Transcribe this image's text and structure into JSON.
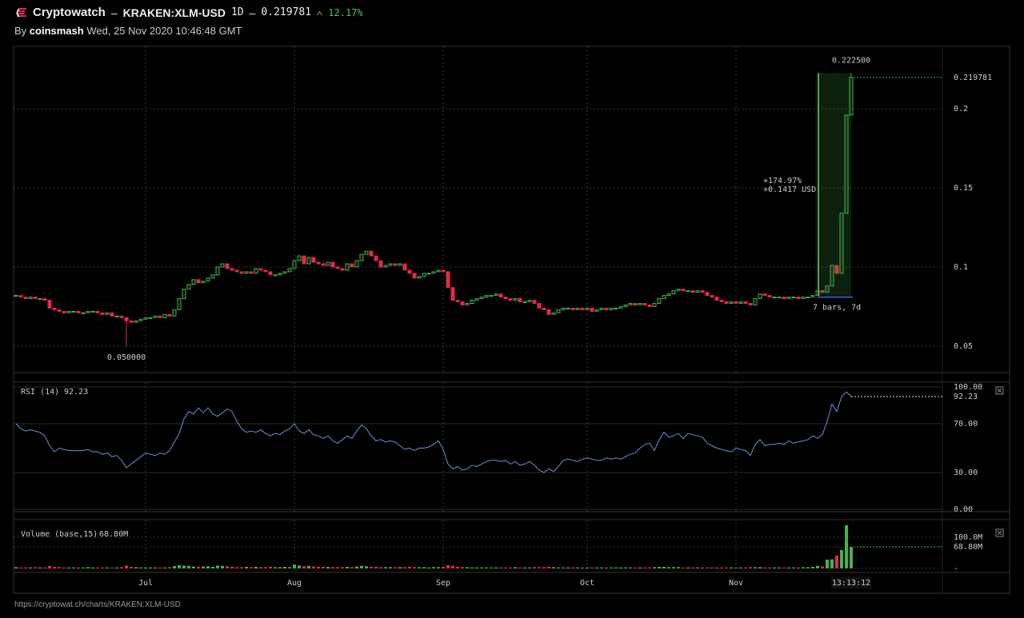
{
  "header": {
    "brand": "Cryptowatch",
    "separator": "–",
    "symbol": "KRAKEN:XLM-USD",
    "interval": "1D",
    "price_change": "12.17%",
    "by": "By",
    "author": "coinsmash",
    "date": "Wed, 25 Nov 2020 10:46:48 GMT"
  },
  "footer": {
    "url": "https://cryptowat.ch/charts/KRAKEN:XLM-USD"
  },
  "chart_data": [
    {
      "type": "candlestick",
      "close": [
        0.082,
        0.081,
        0.08,
        0.081,
        0.08,
        0.08,
        0.079,
        0.074,
        0.073,
        0.072,
        0.071,
        0.072,
        0.072,
        0.071,
        0.071,
        0.072,
        0.072,
        0.071,
        0.07,
        0.071,
        0.069,
        0.069,
        0.068,
        0.066,
        0.065,
        0.066,
        0.067,
        0.068,
        0.068,
        0.069,
        0.068,
        0.07,
        0.069,
        0.073,
        0.08,
        0.086,
        0.089,
        0.092,
        0.09,
        0.091,
        0.093,
        0.095,
        0.1,
        0.102,
        0.099,
        0.098,
        0.097,
        0.096,
        0.097,
        0.096,
        0.099,
        0.098,
        0.097,
        0.095,
        0.095,
        0.096,
        0.097,
        0.099,
        0.104,
        0.107,
        0.102,
        0.106,
        0.103,
        0.102,
        0.101,
        0.103,
        0.1,
        0.099,
        0.098,
        0.102,
        0.1,
        0.104,
        0.108,
        0.11,
        0.107,
        0.104,
        0.1,
        0.101,
        0.102,
        0.101,
        0.102,
        0.098,
        0.096,
        0.093,
        0.094,
        0.096,
        0.096,
        0.097,
        0.098,
        0.097,
        0.087,
        0.079,
        0.078,
        0.076,
        0.077,
        0.079,
        0.08,
        0.081,
        0.082,
        0.082,
        0.083,
        0.081,
        0.08,
        0.079,
        0.08,
        0.078,
        0.078,
        0.079,
        0.077,
        0.074,
        0.073,
        0.07,
        0.071,
        0.073,
        0.074,
        0.074,
        0.073,
        0.074,
        0.073,
        0.074,
        0.072,
        0.073,
        0.074,
        0.073,
        0.074,
        0.074,
        0.075,
        0.076,
        0.077,
        0.076,
        0.077,
        0.076,
        0.075,
        0.077,
        0.08,
        0.082,
        0.083,
        0.085,
        0.086,
        0.085,
        0.085,
        0.084,
        0.085,
        0.084,
        0.082,
        0.081,
        0.079,
        0.078,
        0.077,
        0.078,
        0.077,
        0.078,
        0.077,
        0.076,
        0.08,
        0.083,
        0.082,
        0.081,
        0.081,
        0.081,
        0.08,
        0.081,
        0.081,
        0.08,
        0.081,
        0.081,
        0.082,
        0.085,
        0.084,
        0.088,
        0.101,
        0.096,
        0.134,
        0.196,
        0.219781
      ],
      "colors": {
        "up": "#46b04f",
        "down": "#e3284b"
      },
      "xlim": [
        -0.5,
        193
      ],
      "xticks": [
        {
          "value": 27,
          "label": "Jul"
        },
        {
          "value": 58,
          "label": "Aug"
        },
        {
          "value": 89,
          "label": "Sep"
        },
        {
          "value": 119,
          "label": "Oct"
        },
        {
          "value": 150,
          "label": "Nov"
        }
      ],
      "ylim": [
        0.0333,
        0.2394
      ],
      "yticks": [
        0.05,
        0.1,
        0.15,
        0.2
      ],
      "grid": true,
      "high": {
        "x": 174,
        "value": 0.2225,
        "label": "0.222500"
      },
      "low": {
        "x": 23,
        "value": 0.05,
        "label": "0.050000"
      },
      "measure": {
        "from": 167,
        "to": 174,
        "change_pct": "+174.97%",
        "change_abs": "+0.1417 USD",
        "span": "7 bars, 7d"
      },
      "crosshair": {
        "x": 174,
        "label": "13:13:12"
      }
    },
    {
      "type": "line",
      "title": "RSI (14)",
      "color": "#6f8fd6",
      "values": [
        70,
        66,
        64,
        65,
        64,
        63,
        60,
        52,
        47,
        50,
        49,
        48,
        48,
        48,
        48,
        49,
        47,
        47,
        45,
        46,
        43,
        44,
        40,
        34,
        37,
        40,
        43,
        46,
        45,
        44,
        46,
        45,
        48,
        55,
        62,
        74,
        80,
        78,
        83,
        79,
        83,
        78,
        76,
        79,
        82,
        80,
        72,
        66,
        63,
        64,
        63,
        65,
        62,
        60,
        62,
        61,
        64,
        66,
        70,
        64,
        62,
        65,
        61,
        60,
        58,
        60,
        56,
        54,
        57,
        60,
        58,
        64,
        69,
        66,
        60,
        56,
        57,
        55,
        56,
        55,
        52,
        49,
        50,
        48,
        50,
        50,
        51,
        53,
        56,
        49,
        37,
        33,
        35,
        32,
        33,
        36,
        35,
        37,
        39,
        40,
        40,
        39,
        40,
        37,
        39,
        36,
        37,
        39,
        36,
        32,
        30,
        33,
        31,
        35,
        40,
        41,
        40,
        39,
        41,
        42,
        41,
        40,
        40,
        42,
        41,
        42,
        41,
        43,
        45,
        46,
        50,
        53,
        54,
        48,
        57,
        63,
        59,
        60,
        62,
        58,
        62,
        61,
        60,
        59,
        54,
        52,
        50,
        49,
        48,
        47,
        50,
        49,
        48,
        44,
        53,
        57,
        52,
        53,
        53,
        54,
        53,
        56,
        54,
        55,
        56,
        57,
        60,
        58,
        61,
        72,
        86,
        80,
        92,
        96,
        92.23
      ],
      "ylim": [
        -2,
        104
      ],
      "yticks": [
        {
          "value": 0,
          "label": "0.00"
        },
        {
          "value": 30,
          "label": "30.00"
        },
        {
          "value": 70,
          "label": "70.00"
        },
        {
          "value": 100,
          "label": "100.00"
        }
      ]
    },
    {
      "type": "bar",
      "title": "Volume (base,15)",
      "values": [
        4,
        3,
        3,
        3,
        4,
        3,
        3,
        8,
        5,
        4,
        3,
        3,
        3,
        3,
        3,
        4,
        3,
        3,
        3,
        3,
        3,
        3,
        4,
        9,
        5,
        4,
        3,
        3,
        3,
        3,
        3,
        3,
        4,
        7,
        10,
        9,
        8,
        6,
        5,
        6,
        7,
        5,
        9,
        8,
        7,
        5,
        4,
        4,
        5,
        4,
        5,
        4,
        4,
        5,
        4,
        4,
        5,
        4,
        12,
        9,
        7,
        8,
        6,
        5,
        5,
        5,
        4,
        4,
        4,
        5,
        4,
        6,
        8,
        7,
        5,
        5,
        4,
        4,
        4,
        4,
        4,
        4,
        5,
        4,
        4,
        4,
        3,
        4,
        4,
        5,
        10,
        8,
        5,
        4,
        4,
        3,
        3,
        3,
        3,
        3,
        3,
        3,
        3,
        3,
        4,
        3,
        3,
        3,
        4,
        4,
        4,
        5,
        4,
        3,
        3,
        3,
        3,
        3,
        3,
        3,
        3,
        3,
        3,
        3,
        3,
        3,
        3,
        3,
        3,
        3,
        3,
        3,
        3,
        4,
        5,
        5,
        4,
        4,
        4,
        3,
        3,
        3,
        3,
        3,
        3,
        3,
        3,
        3,
        3,
        3,
        3,
        3,
        3,
        4,
        4,
        4,
        3,
        3,
        3,
        3,
        3,
        3,
        3,
        3,
        4,
        4,
        5,
        8,
        6,
        28,
        29,
        41,
        59,
        138,
        68.8
      ],
      "ylim": [
        -13,
        156
      ],
      "yticks": [
        {
          "value": 0,
          "label": "-"
        },
        {
          "value": 68.8,
          "label": "68.80M"
        },
        {
          "value": 100,
          "label": "100.0M"
        }
      ]
    }
  ]
}
